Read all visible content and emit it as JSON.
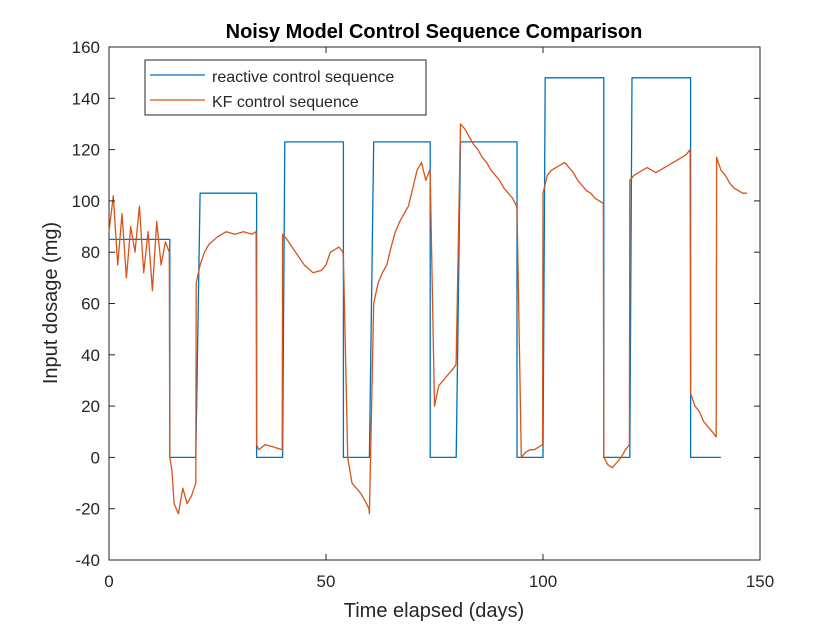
{
  "chart_data": {
    "type": "line",
    "title": "Noisy Model Control Sequence Comparison",
    "xlabel": "Time elapsed (days)",
    "ylabel": "Input dosage (mg)",
    "xlim": [
      0,
      150
    ],
    "ylim": [
      -40,
      160
    ],
    "xticks": [
      0,
      50,
      100,
      150
    ],
    "yticks": [
      -40,
      -20,
      0,
      20,
      40,
      60,
      80,
      100,
      120,
      140,
      160
    ],
    "grid": false,
    "legend_position": "top-left",
    "series": [
      {
        "name": "reactive control sequence",
        "color": "#0072BD",
        "x": [
          0,
          14,
          14,
          20,
          21,
          34,
          34,
          40,
          40.5,
          54,
          54,
          60,
          61,
          74,
          74,
          80,
          81,
          94,
          94,
          100,
          100.5,
          114,
          114,
          120,
          120.5,
          134,
          134,
          140,
          141
        ],
        "y": [
          85,
          85,
          0,
          0,
          103,
          103,
          0,
          0,
          123,
          123,
          0,
          0,
          123,
          123,
          0,
          0,
          123,
          123,
          0,
          0,
          148,
          148,
          0,
          0,
          148,
          148,
          0,
          0,
          0
        ]
      },
      {
        "name": "KF control sequence",
        "color": "#D95319",
        "x": [
          0,
          1,
          2,
          3,
          4,
          5,
          6,
          7,
          8,
          9,
          10,
          11,
          12,
          13,
          13.9,
          14,
          14.5,
          15,
          16,
          17,
          18,
          19,
          20,
          20.1,
          21,
          22,
          23,
          25,
          27,
          29,
          31,
          33,
          33.9,
          34,
          34.5,
          36,
          38,
          39.9,
          40,
          41,
          43,
          45,
          47,
          49,
          50,
          51,
          53,
          53.9,
          54,
          55,
          56,
          57,
          58,
          59,
          59.9,
          60,
          61,
          62,
          63,
          64,
          65,
          66,
          67,
          68,
          69,
          70,
          71,
          72,
          73,
          73.9,
          74,
          75,
          76,
          77,
          78,
          79,
          79.9,
          80,
          81,
          82,
          83,
          84,
          85,
          86,
          87,
          88,
          89,
          90,
          91,
          92,
          93,
          93.9,
          94,
          95,
          96,
          97,
          98,
          99,
          99.9,
          100,
          101,
          102,
          103,
          104,
          105,
          106,
          107,
          108,
          109,
          110,
          111,
          112,
          113,
          113.9,
          114,
          115,
          116,
          117,
          118,
          119,
          119.9,
          120,
          121,
          122,
          123,
          124,
          125,
          126,
          127,
          128,
          129,
          130,
          131,
          132,
          133,
          133.9,
          134,
          135,
          136,
          137,
          138,
          139,
          139.9,
          140,
          141,
          142,
          143,
          144,
          145,
          146,
          147
        ],
        "y": [
          88,
          102,
          75,
          95,
          70,
          90,
          80,
          98,
          72,
          88,
          65,
          92,
          75,
          84,
          80,
          0,
          -5,
          -18,
          -22,
          -12,
          -18,
          -15,
          -10,
          68,
          75,
          80,
          83,
          86,
          88,
          87,
          88,
          87,
          88,
          5,
          3,
          5,
          4,
          3,
          87,
          85,
          80,
          75,
          72,
          73,
          75,
          80,
          82,
          80,
          78,
          0,
          -10,
          -12,
          -14,
          -17,
          -20,
          -22,
          60,
          68,
          72,
          75,
          82,
          88,
          92,
          95,
          98,
          105,
          112,
          115,
          108,
          112,
          110,
          20,
          28,
          30,
          32,
          34,
          36,
          38,
          130,
          128,
          125,
          122,
          120,
          117,
          115,
          112,
          110,
          108,
          105,
          103,
          101,
          98,
          97,
          0,
          2,
          3,
          3,
          4,
          5,
          103,
          110,
          112,
          113,
          114,
          115,
          113,
          111,
          108,
          106,
          104,
          103,
          101,
          100,
          99,
          0,
          -3,
          -4,
          -2,
          0,
          3,
          5,
          108,
          110,
          111,
          112,
          113,
          112,
          111,
          112,
          113,
          114,
          115,
          116,
          117,
          118,
          120,
          25,
          20,
          18,
          14,
          12,
          10,
          8,
          117,
          112,
          110,
          107,
          105,
          104,
          103,
          103
        ]
      }
    ]
  }
}
